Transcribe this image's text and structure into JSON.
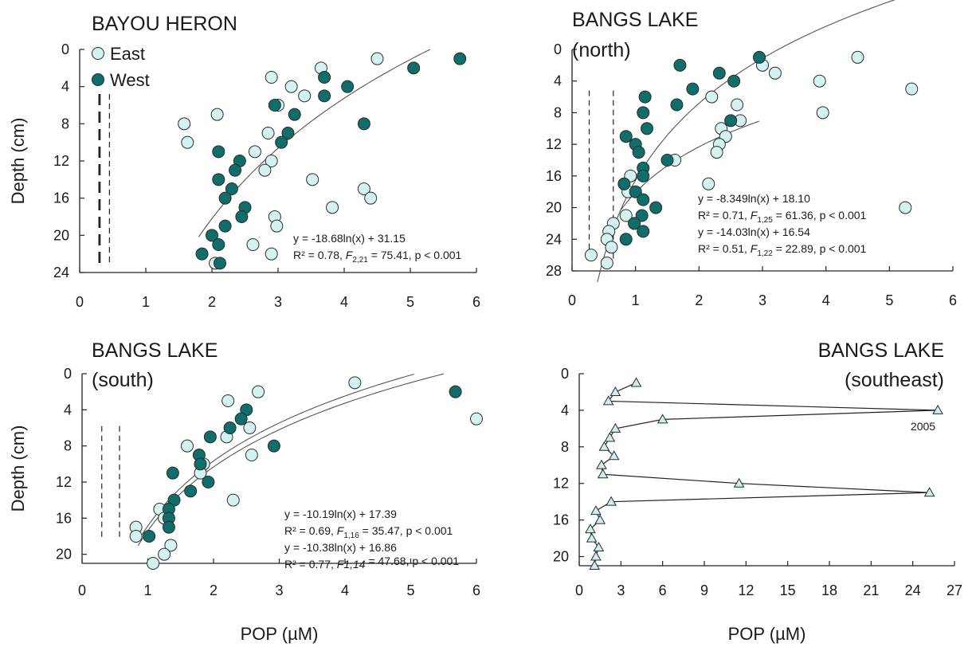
{
  "chart_data": [
    {
      "id": "a",
      "type": "scatter",
      "title_lines": [
        "BAYOU HERON"
      ],
      "xlabel": "",
      "ylabel": "Depth (cm)",
      "xlim": [
        0,
        6
      ],
      "ylim": [
        0,
        24
      ],
      "y_inverted": true,
      "xticks": [
        0,
        1,
        2,
        3,
        4,
        5,
        6
      ],
      "yticks": [
        0,
        4,
        8,
        12,
        16,
        20,
        24
      ],
      "legend": {
        "placement": "top-left",
        "entries": [
          {
            "label": "East",
            "series": "east"
          },
          {
            "label": "West",
            "series": "west"
          }
        ]
      },
      "colors": {
        "east": "#d3f2f0",
        "west": "#0f6e6a",
        "triangle": "#cdeeee",
        "edge": "#2b2b2b",
        "fit": "#555555",
        "dash": "#222222"
      },
      "series": [
        {
          "name": "East",
          "key": "east",
          "marker": "circle",
          "points": [
            [
              4.5,
              1
            ],
            [
              3.65,
              2
            ],
            [
              2.9,
              3
            ],
            [
              3.2,
              4
            ],
            [
              3.4,
              5
            ],
            [
              3.0,
              6
            ],
            [
              2.08,
              7
            ],
            [
              1.58,
              8
            ],
            [
              2.85,
              9
            ],
            [
              1.63,
              10
            ],
            [
              2.65,
              11
            ],
            [
              2.9,
              12
            ],
            [
              2.8,
              13
            ],
            [
              3.52,
              14
            ],
            [
              4.3,
              15
            ],
            [
              4.4,
              16
            ],
            [
              3.82,
              17
            ],
            [
              2.95,
              18
            ],
            [
              2.98,
              19
            ],
            [
              2.62,
              21
            ],
            [
              2.9,
              22
            ],
            [
              2.05,
              23
            ]
          ]
        },
        {
          "name": "West",
          "key": "west",
          "marker": "circle",
          "points": [
            [
              5.75,
              1
            ],
            [
              5.05,
              2
            ],
            [
              3.7,
              3
            ],
            [
              4.05,
              4
            ],
            [
              3.7,
              5
            ],
            [
              2.95,
              6
            ],
            [
              3.25,
              7
            ],
            [
              4.3,
              8
            ],
            [
              3.15,
              9
            ],
            [
              3.05,
              10
            ],
            [
              2.1,
              11
            ],
            [
              2.42,
              12
            ],
            [
              2.35,
              13
            ],
            [
              2.1,
              14
            ],
            [
              2.3,
              15
            ],
            [
              2.2,
              16
            ],
            [
              2.5,
              17
            ],
            [
              2.45,
              18
            ],
            [
              2.2,
              19
            ],
            [
              2.0,
              20
            ],
            [
              2.1,
              21
            ],
            [
              1.85,
              22
            ],
            [
              2.12,
              23
            ]
          ]
        }
      ],
      "fits": [
        {
          "a": -18.68,
          "b": 31.15,
          "x0": 1.8,
          "x1": 5.3
        }
      ],
      "detection_lines": [
        {
          "x": 0.3,
          "style": "long"
        },
        {
          "x": 0.45,
          "style": "short"
        }
      ],
      "equations": [
        {
          "parts": [
            "y = -18.68ln(x) + 31.15"
          ]
        },
        {
          "parts": [
            "R² = 0.78, ",
            "F",
            "2,21",
            " = 75.41, p < 0.001"
          ]
        }
      ]
    },
    {
      "id": "b",
      "type": "scatter",
      "title_lines": [
        "BANGS LAKE",
        "(north)"
      ],
      "xlabel": "",
      "ylabel": "",
      "xlim": [
        0,
        6
      ],
      "ylim": [
        0,
        28
      ],
      "y_inverted": true,
      "xticks": [
        0,
        1,
        2,
        3,
        4,
        5,
        6
      ],
      "yticks": [
        0,
        4,
        8,
        12,
        16,
        20,
        24,
        28
      ],
      "series": [
        {
          "name": "East",
          "key": "east",
          "marker": "circle",
          "points": [
            [
              4.5,
              1
            ],
            [
              3.0,
              2
            ],
            [
              3.2,
              3
            ],
            [
              3.9,
              4
            ],
            [
              5.35,
              5
            ],
            [
              2.2,
              6
            ],
            [
              2.6,
              7
            ],
            [
              3.95,
              8
            ],
            [
              2.65,
              9
            ],
            [
              2.35,
              10
            ],
            [
              2.42,
              11
            ],
            [
              2.32,
              12
            ],
            [
              2.28,
              13
            ],
            [
              1.62,
              14
            ],
            [
              0.92,
              16
            ],
            [
              2.15,
              17
            ],
            [
              0.88,
              18
            ],
            [
              0.85,
              21
            ],
            [
              5.25,
              20
            ],
            [
              0.65,
              22
            ],
            [
              0.58,
              23
            ],
            [
              0.55,
              24
            ],
            [
              0.62,
              25
            ],
            [
              0.3,
              26
            ],
            [
              0.55,
              27
            ]
          ]
        },
        {
          "name": "West",
          "key": "west",
          "marker": "circle",
          "points": [
            [
              2.95,
              1
            ],
            [
              1.7,
              2
            ],
            [
              2.32,
              3
            ],
            [
              2.55,
              4
            ],
            [
              1.9,
              5
            ],
            [
              1.15,
              6
            ],
            [
              1.65,
              7
            ],
            [
              1.12,
              8
            ],
            [
              2.5,
              9
            ],
            [
              1.18,
              10
            ],
            [
              0.85,
              11
            ],
            [
              1.0,
              12
            ],
            [
              1.05,
              13
            ],
            [
              1.5,
              14
            ],
            [
              1.12,
              15
            ],
            [
              1.12,
              16
            ],
            [
              0.82,
              17
            ],
            [
              1.0,
              18
            ],
            [
              1.12,
              19
            ],
            [
              1.32,
              20
            ],
            [
              1.1,
              21
            ],
            [
              0.98,
              22
            ],
            [
              1.12,
              23
            ],
            [
              0.85,
              24
            ]
          ]
        }
      ],
      "fits": [
        {
          "a": -8.349,
          "b": 18.1,
          "x0": 0.75,
          "x1": 2.95
        },
        {
          "a": -14.03,
          "b": 16.54,
          "x0": 0.4,
          "x1": 5.2
        }
      ],
      "detection_lines": [
        {
          "x": 0.27,
          "style": "short"
        },
        {
          "x": 0.65,
          "style": "short"
        }
      ],
      "equations": [
        {
          "parts": [
            "y = -8.349ln(x) + 18.10"
          ]
        },
        {
          "parts": [
            "R² = 0.71, ",
            "F",
            "1,25",
            " = 61.36, p < 0.001"
          ]
        },
        {
          "parts": [
            "y = -14.03ln(x) + 16.54"
          ]
        },
        {
          "parts": [
            "R² = 0.51, ",
            "F",
            "1,22",
            " = 22.89, p < 0.001"
          ]
        }
      ]
    },
    {
      "id": "c",
      "type": "scatter",
      "title_lines": [
        "BANGS LAKE",
        "(south)"
      ],
      "xlabel": "POP (µM)",
      "ylabel": "Depth (cm)",
      "xlim": [
        0,
        6
      ],
      "ylim": [
        0,
        21
      ],
      "y_inverted": true,
      "xticks": [
        0,
        1,
        2,
        3,
        4,
        5,
        6
      ],
      "yticks": [
        0,
        4,
        8,
        12,
        16,
        20
      ],
      "series": [
        {
          "name": "East",
          "key": "east",
          "marker": "circle",
          "points": [
            [
              4.15,
              1
            ],
            [
              2.68,
              2
            ],
            [
              2.22,
              3
            ],
            [
              6.0,
              5
            ],
            [
              2.55,
              6
            ],
            [
              2.2,
              7
            ],
            [
              1.6,
              8
            ],
            [
              2.58,
              9
            ],
            [
              1.85,
              10
            ],
            [
              1.8,
              11
            ],
            [
              2.3,
              14
            ],
            [
              1.18,
              15
            ],
            [
              1.25,
              16
            ],
            [
              0.82,
              17
            ],
            [
              0.82,
              18
            ],
            [
              1.35,
              19
            ],
            [
              1.25,
              20
            ],
            [
              1.08,
              21
            ]
          ]
        },
        {
          "name": "West",
          "key": "west",
          "marker": "circle",
          "points": [
            [
              5.68,
              2
            ],
            [
              2.5,
              4
            ],
            [
              2.42,
              5
            ],
            [
              2.25,
              6
            ],
            [
              1.95,
              7
            ],
            [
              2.92,
              8
            ],
            [
              1.78,
              9
            ],
            [
              1.8,
              10
            ],
            [
              1.02,
              18
            ],
            [
              1.38,
              11
            ],
            [
              1.92,
              12
            ],
            [
              1.65,
              13
            ],
            [
              1.4,
              14
            ],
            [
              1.32,
              15
            ],
            [
              1.32,
              16
            ],
            [
              1.32,
              17
            ]
          ]
        }
      ],
      "fits": [
        {
          "a": -10.19,
          "b": 17.39,
          "x0": 0.85,
          "x1": 5.5
        },
        {
          "a": -10.38,
          "b": 16.86,
          "x0": 0.85,
          "x1": 5.05
        }
      ],
      "detection_lines": [
        {
          "x": 0.3,
          "style": "short"
        },
        {
          "x": 0.57,
          "style": "short"
        }
      ],
      "equations": [
        {
          "parts": [
            "y = -10.19ln(x) + 17.39"
          ]
        },
        {
          "parts": [
            "R² = 0.69, ",
            "F",
            "1,16",
            " = 35.47, p < 0.001"
          ]
        },
        {
          "parts": [
            "y = -10.38ln(x) + 16.86"
          ]
        },
        {
          "parts": [
            "R² = 0.77, ",
            "F1,14",
            "",
            " = 47.68, p < 0.001"
          ]
        }
      ]
    },
    {
      "id": "d",
      "type": "line",
      "title_lines": [
        "BANGS LAKE",
        "(southeast)"
      ],
      "xlabel": "POP (µM)",
      "ylabel": "",
      "xlim": [
        0,
        27
      ],
      "ylim": [
        0,
        21
      ],
      "y_inverted": true,
      "xticks": [
        0,
        3,
        6,
        9,
        12,
        15,
        18,
        21,
        24,
        27
      ],
      "yticks": [
        0,
        4,
        8,
        12,
        16,
        20
      ],
      "series": [
        {
          "name": "",
          "key": "triangle",
          "marker": "triangle",
          "connected": true,
          "points": [
            [
              4.1,
              1
            ],
            [
              2.6,
              2
            ],
            [
              2.1,
              3
            ],
            [
              25.8,
              4
            ],
            [
              6.0,
              5
            ],
            [
              2.6,
              6
            ],
            [
              2.2,
              7
            ],
            [
              1.8,
              8
            ],
            [
              2.5,
              9
            ],
            [
              1.6,
              10
            ],
            [
              1.7,
              11
            ],
            [
              11.5,
              12
            ],
            [
              25.2,
              13
            ],
            [
              2.3,
              14
            ],
            [
              1.2,
              15
            ],
            [
              1.5,
              16
            ],
            [
              0.8,
              17
            ],
            [
              0.9,
              18
            ],
            [
              1.4,
              19
            ],
            [
              1.2,
              20
            ],
            [
              1.1,
              21
            ]
          ]
        }
      ],
      "annotation": {
        "text": "2005",
        "x": 25.8,
        "y": 4
      }
    }
  ]
}
